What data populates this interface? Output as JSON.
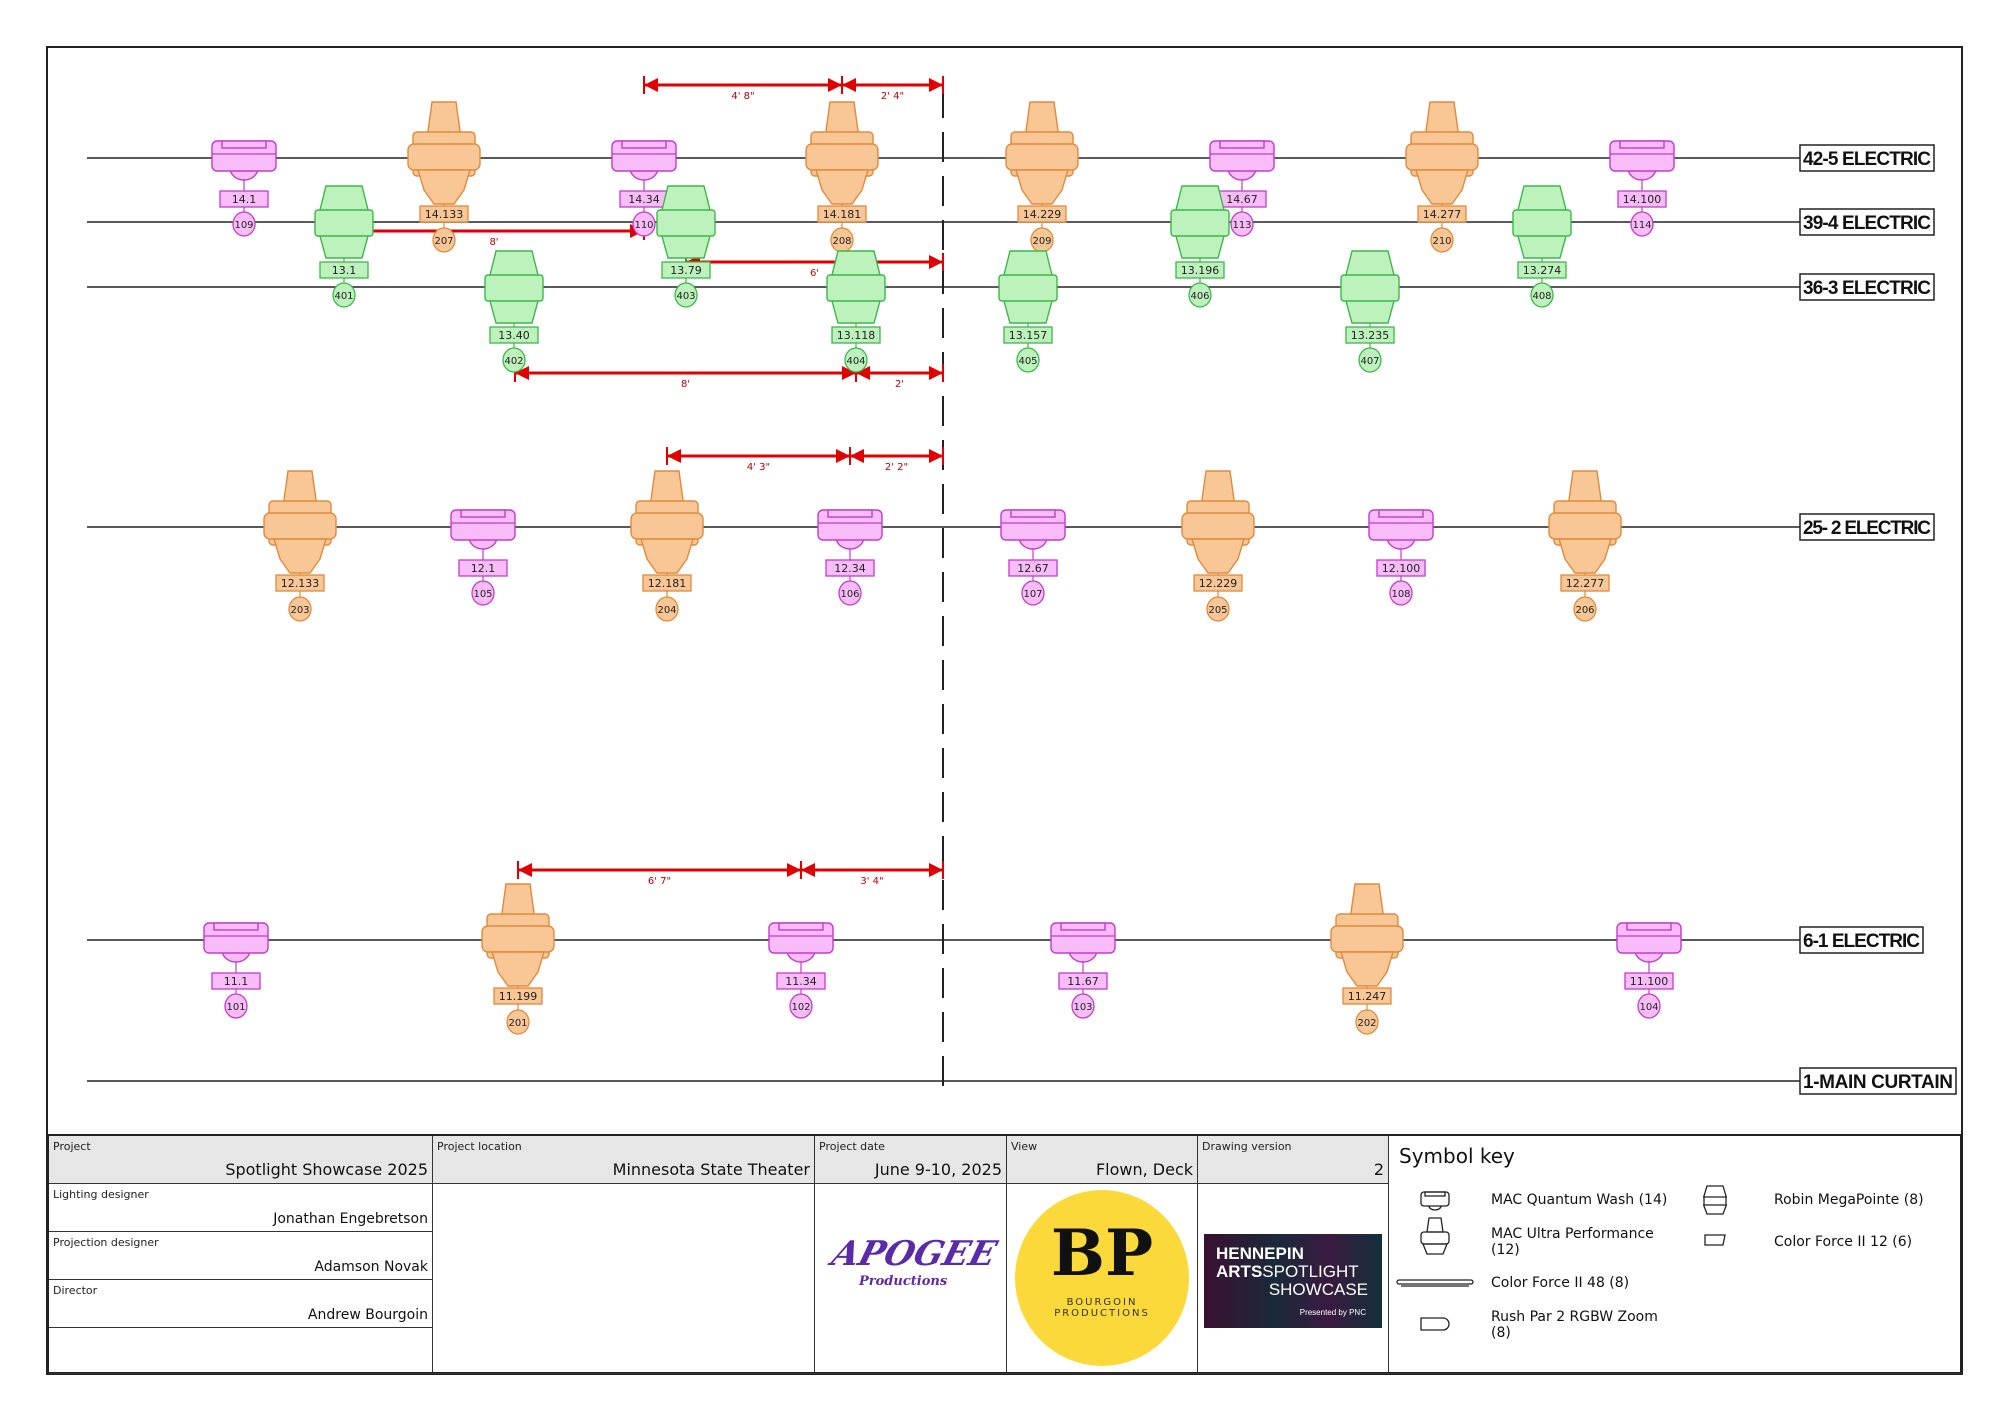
{
  "colors": {
    "up_fill": "#f9c795",
    "up_stroke": "#e08a3c",
    "wash_fill": "#f8bdf8",
    "wash_stroke": "#c23ccb",
    "mp_fill": "#bdf2bd",
    "mp_stroke": "#3cb84a",
    "dim": "#e00000"
  },
  "pipes": [
    {
      "id": "p5",
      "label": "42-5 ELECTRIC",
      "fixtures": [
        {
          "type": "wash",
          "channel": "14.1",
          "address": "109"
        },
        {
          "type": "up",
          "channel": "14.133",
          "address": "207"
        },
        {
          "type": "wash",
          "channel": "14.34",
          "address": "110"
        },
        {
          "type": "up",
          "channel": "14.181",
          "address": "208"
        },
        {
          "type": "up",
          "channel": "14.229",
          "address": "209"
        },
        {
          "type": "wash",
          "channel": "14.67",
          "address": "113"
        },
        {
          "type": "up",
          "channel": "14.277",
          "address": "210"
        },
        {
          "type": "wash",
          "channel": "14.100",
          "address": "114"
        }
      ]
    },
    {
      "id": "p4",
      "label": "39-4 ELECTRIC",
      "fixtures": [
        {
          "type": "mp",
          "channel": "13.1",
          "address": "401"
        },
        {
          "type": "mp",
          "channel": "13.79",
          "address": "403"
        },
        {
          "type": "mp",
          "channel": "13.196",
          "address": "406"
        },
        {
          "type": "mp",
          "channel": "13.274",
          "address": "408"
        }
      ]
    },
    {
      "id": "p3",
      "label": "36-3 ELECTRIC",
      "fixtures": [
        {
          "type": "mp",
          "channel": "13.40",
          "address": "402"
        },
        {
          "type": "mp",
          "channel": "13.118",
          "address": "404"
        },
        {
          "type": "mp",
          "channel": "13.157",
          "address": "405"
        },
        {
          "type": "mp",
          "channel": "13.235",
          "address": "407"
        }
      ]
    },
    {
      "id": "p2",
      "label": "25- 2 ELECTRIC",
      "fixtures": [
        {
          "type": "up",
          "channel": "12.133",
          "address": "203"
        },
        {
          "type": "wash",
          "channel": "12.1",
          "address": "105"
        },
        {
          "type": "up",
          "channel": "12.181",
          "address": "204"
        },
        {
          "type": "wash",
          "channel": "12.34",
          "address": "106"
        },
        {
          "type": "wash",
          "channel": "12.67",
          "address": "107"
        },
        {
          "type": "up",
          "channel": "12.229",
          "address": "205"
        },
        {
          "type": "wash",
          "channel": "12.100",
          "address": "108"
        },
        {
          "type": "up",
          "channel": "12.277",
          "address": "206"
        }
      ]
    },
    {
      "id": "p1",
      "label": "6-1 ELECTRIC",
      "fixtures": [
        {
          "type": "wash",
          "channel": "11.1",
          "address": "101"
        },
        {
          "type": "up",
          "channel": "11.199",
          "address": "201"
        },
        {
          "type": "wash",
          "channel": "11.34",
          "address": "102"
        },
        {
          "type": "wash",
          "channel": "11.67",
          "address": "103"
        },
        {
          "type": "up",
          "channel": "11.247",
          "address": "202"
        },
        {
          "type": "wash",
          "channel": "11.100",
          "address": "104"
        }
      ]
    },
    {
      "id": "p0",
      "label": "1-MAIN CURTAIN",
      "fixtures": []
    }
  ],
  "dimensions": [
    "4' 8\"",
    "2' 4\"",
    "8'",
    "6'",
    "8'",
    "2'",
    "4' 3\"",
    "2' 2\"",
    "6' 7\"",
    "3' 4\""
  ],
  "title_block": {
    "project": {
      "caption": "Project",
      "value": "Spotlight Showcase 2025"
    },
    "location": {
      "caption": "Project location",
      "value": "Minnesota State Theater"
    },
    "date": {
      "caption": "Project date",
      "value": "June 9-10, 2025"
    },
    "view": {
      "caption": "View",
      "value": "Flown, Deck"
    },
    "version": {
      "caption": "Drawing version",
      "value": "2"
    },
    "lighting": {
      "caption": "Lighting designer",
      "value": "Jonathan Engebretson"
    },
    "projection": {
      "caption": "Projection designer",
      "value": "Adamson Novak"
    },
    "director": {
      "caption": "Director",
      "value": "Andrew Bourgoin"
    },
    "logos": {
      "apogee": "APOGEE",
      "apogee_sub": "Productions",
      "bp": "BP",
      "bp_sub1": "BOURGOIN",
      "bp_sub2": "PRODUCTIONS",
      "hen1": "HENNEPIN",
      "hen2a": "ARTS",
      "hen2b": "SPOTLIGHT",
      "hen3": "SHOWCASE",
      "hen4": "Presented by PNC"
    }
  },
  "symbol_key": {
    "title": "Symbol key",
    "items": [
      "MAC Quantum Wash (14)",
      "MAC Ultra Performance (12)",
      "Color Force II 48 (8)",
      "Rush Par 2 RGBW Zoom (8)",
      "Robin MegaPointe (8)",
      "Color Force II 12 (6)"
    ]
  }
}
